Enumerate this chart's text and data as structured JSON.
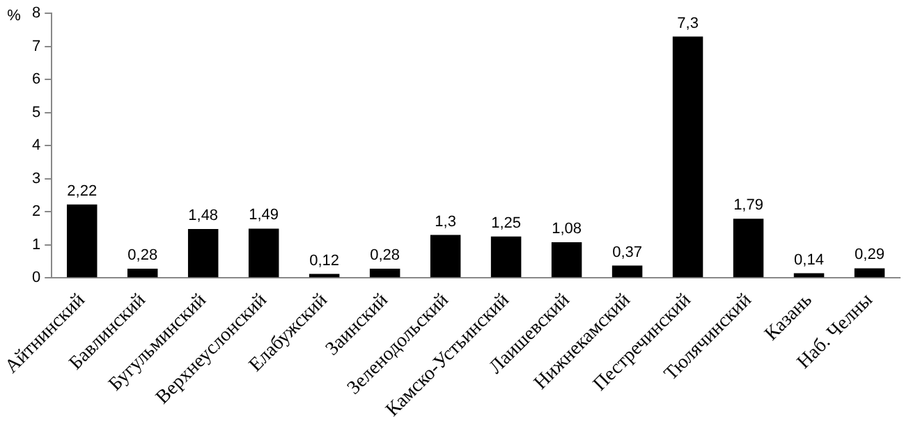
{
  "chart_data": {
    "type": "bar",
    "ylabel": "%",
    "categories": [
      "Айтнинский",
      "Бавлинский",
      "Бугульминский",
      "Верхнеуслонский",
      "Елабужский",
      "Заинский",
      "Зеленодольский",
      "Камско-Устьинский",
      "Лаишевский",
      "Нижнекамский",
      "Пестречинский",
      "Тюлячинский",
      "Казань",
      "Наб. Челны"
    ],
    "values": [
      2.22,
      0.28,
      1.48,
      1.49,
      0.12,
      0.28,
      1.3,
      1.25,
      1.08,
      0.37,
      7.3,
      1.79,
      0.14,
      0.29
    ],
    "value_labels": [
      "2,22",
      "0,28",
      "1,48",
      "1,49",
      "0,12",
      "0,28",
      "1,3",
      "1,25",
      "1,08",
      "0,37",
      "7,3",
      "1,79",
      "0,14",
      "0,29"
    ],
    "color": "#000000",
    "ylim": [
      0,
      8
    ],
    "yticks": [
      0,
      1,
      2,
      3,
      4,
      5,
      6,
      7,
      8
    ],
    "grid": false,
    "legend": false
  }
}
